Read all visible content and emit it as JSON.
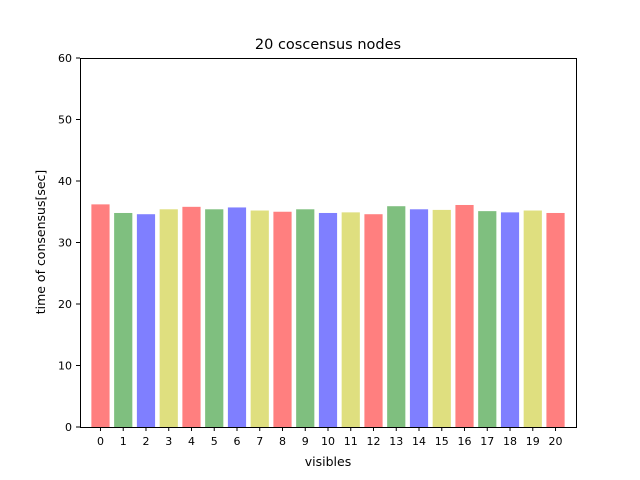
{
  "chart_data": {
    "type": "bar",
    "title": "20 coscensus nodes",
    "xlabel": "visibles",
    "ylabel": "time of consensus[sec]",
    "categories": [
      "0",
      "1",
      "2",
      "3",
      "4",
      "5",
      "6",
      "7",
      "8",
      "9",
      "10",
      "11",
      "12",
      "13",
      "14",
      "15",
      "16",
      "17",
      "18",
      "19",
      "20"
    ],
    "values": [
      36.2,
      34.8,
      34.6,
      35.4,
      35.8,
      35.4,
      35.7,
      35.2,
      35.0,
      35.4,
      34.8,
      34.9,
      34.6,
      35.9,
      35.4,
      35.3,
      36.1,
      35.1,
      34.9,
      35.2,
      34.8
    ],
    "colors": [
      "#ff7f7f",
      "#7fbf7f",
      "#7f7fff",
      "#dfdf7f",
      "#ff7f7f",
      "#7fbf7f",
      "#7f7fff",
      "#dfdf7f",
      "#ff7f7f",
      "#7fbf7f",
      "#7f7fff",
      "#dfdf7f",
      "#ff7f7f",
      "#7fbf7f",
      "#7f7fff",
      "#dfdf7f",
      "#ff7f7f",
      "#7fbf7f",
      "#7f7fff",
      "#dfdf7f",
      "#ff7f7f"
    ],
    "ylim": [
      0,
      60
    ],
    "yticks": [
      0,
      10,
      20,
      30,
      40,
      50,
      60
    ],
    "grid": false,
    "legend": "none"
  }
}
